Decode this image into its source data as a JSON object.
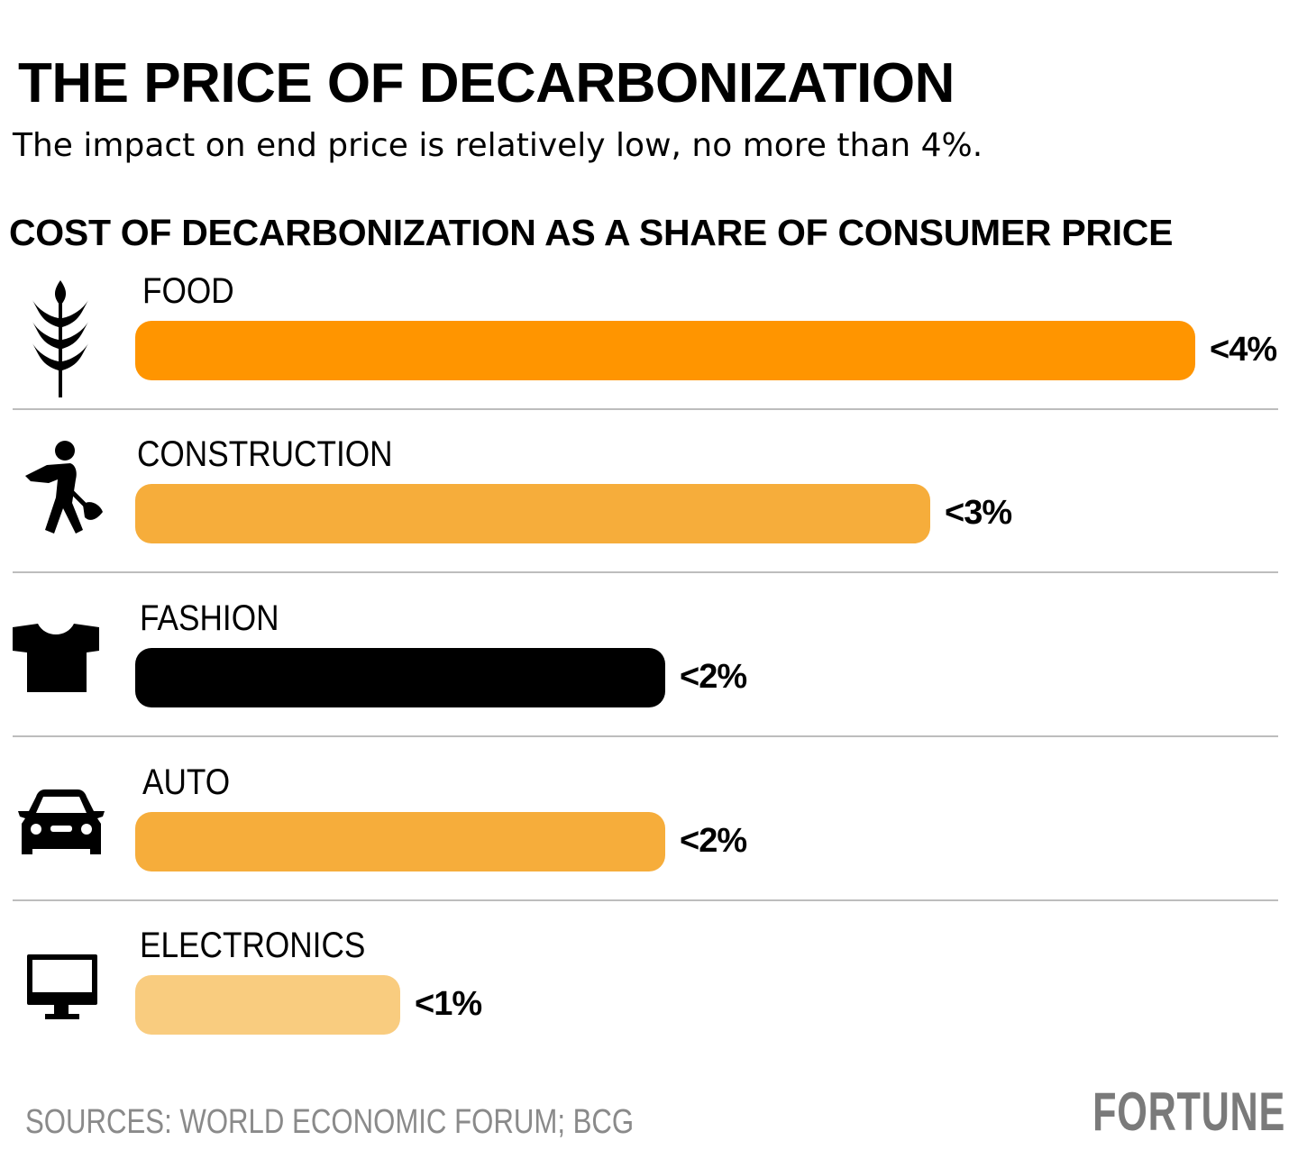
{
  "header": {
    "title": "THE PRICE OF DECARBONIZATION",
    "subtitle": "The impact on end price is relatively low, no more than 4%."
  },
  "chart_data": {
    "type": "bar",
    "orientation": "horizontal",
    "title": "COST OF DECARBONIZATION AS A SHARE OF CONSUMER PRICE",
    "categories": [
      "FOOD",
      "CONSTRUCTION",
      "FASHION",
      "AUTO",
      "ELECTRONICS"
    ],
    "values": [
      4,
      3,
      2,
      2,
      1
    ],
    "value_labels": [
      "<4%",
      "<3%",
      "<2%",
      "<2%",
      "<1%"
    ],
    "unit": "%",
    "xlim": [
      0,
      4
    ],
    "grid": false,
    "legend": "none",
    "icons": [
      "wheat-icon",
      "worker-shovel-icon",
      "tshirt-icon",
      "car-icon",
      "monitor-icon"
    ],
    "colors": [
      "#ff9500",
      "#f6ad3b",
      "#000000",
      "#f6ad3b",
      "#f9cc7f"
    ]
  },
  "footer": {
    "source": "SOURCES: WORLD ECONOMIC FORUM; BCG",
    "logo": "FORTUNE"
  }
}
